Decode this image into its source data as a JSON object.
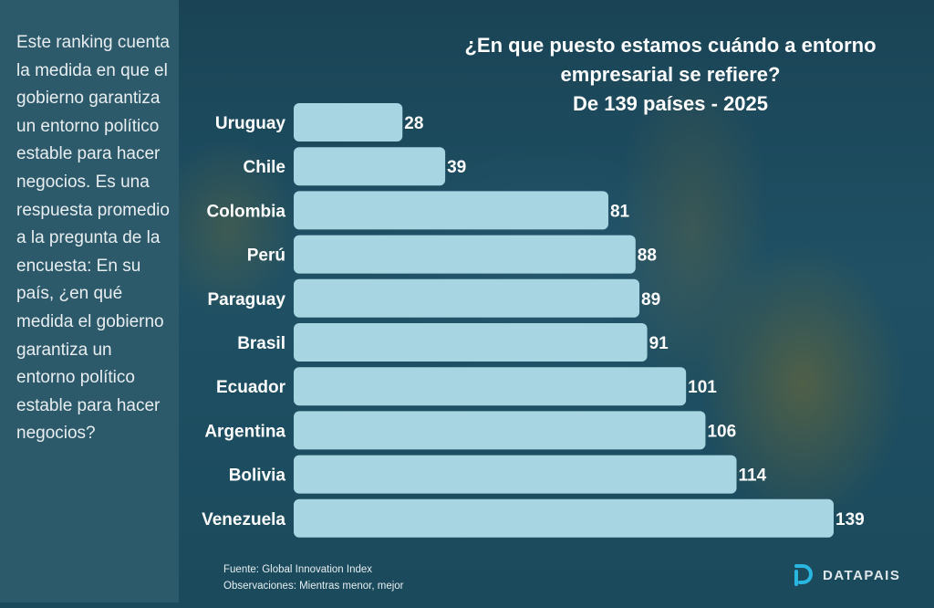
{
  "sidebar": {
    "description": "Este ranking cuenta la medida en que el gobierno garantiza un entorno político estable para hacer negocios. Es una respuesta promedio a la pregunta de la encuesta: En su país, ¿en qué medida el gobierno garantiza un entorno político estable para hacer negocios?"
  },
  "footer": {
    "source": "Fuente: Global Innovation Index",
    "note": "Observaciones: Mientras menor, mejor"
  },
  "brand": {
    "name": "DATAPAIS",
    "logo_icon": "datapais-d-logo-icon",
    "accent_color": "#29b6e0"
  },
  "colors": {
    "bar": "#a8d5e2",
    "label": "#ffffff"
  },
  "chart_data": {
    "type": "bar",
    "orientation": "horizontal",
    "title": "¿En que puesto estamos cuándo a entorno empresarial se refiere?",
    "subtitle": "De 139 países - 2025",
    "xlabel": "",
    "ylabel": "",
    "categories": [
      "Uruguay",
      "Chile",
      "Colombia",
      "Perú",
      "Paraguay",
      "Brasil",
      "Ecuador",
      "Argentina",
      "Bolivia",
      "Venezuela"
    ],
    "values": [
      28,
      39,
      81,
      88,
      89,
      91,
      101,
      106,
      114,
      139
    ],
    "xlim": [
      0,
      139
    ],
    "grid": false,
    "legend": "none",
    "data_labels": true
  }
}
